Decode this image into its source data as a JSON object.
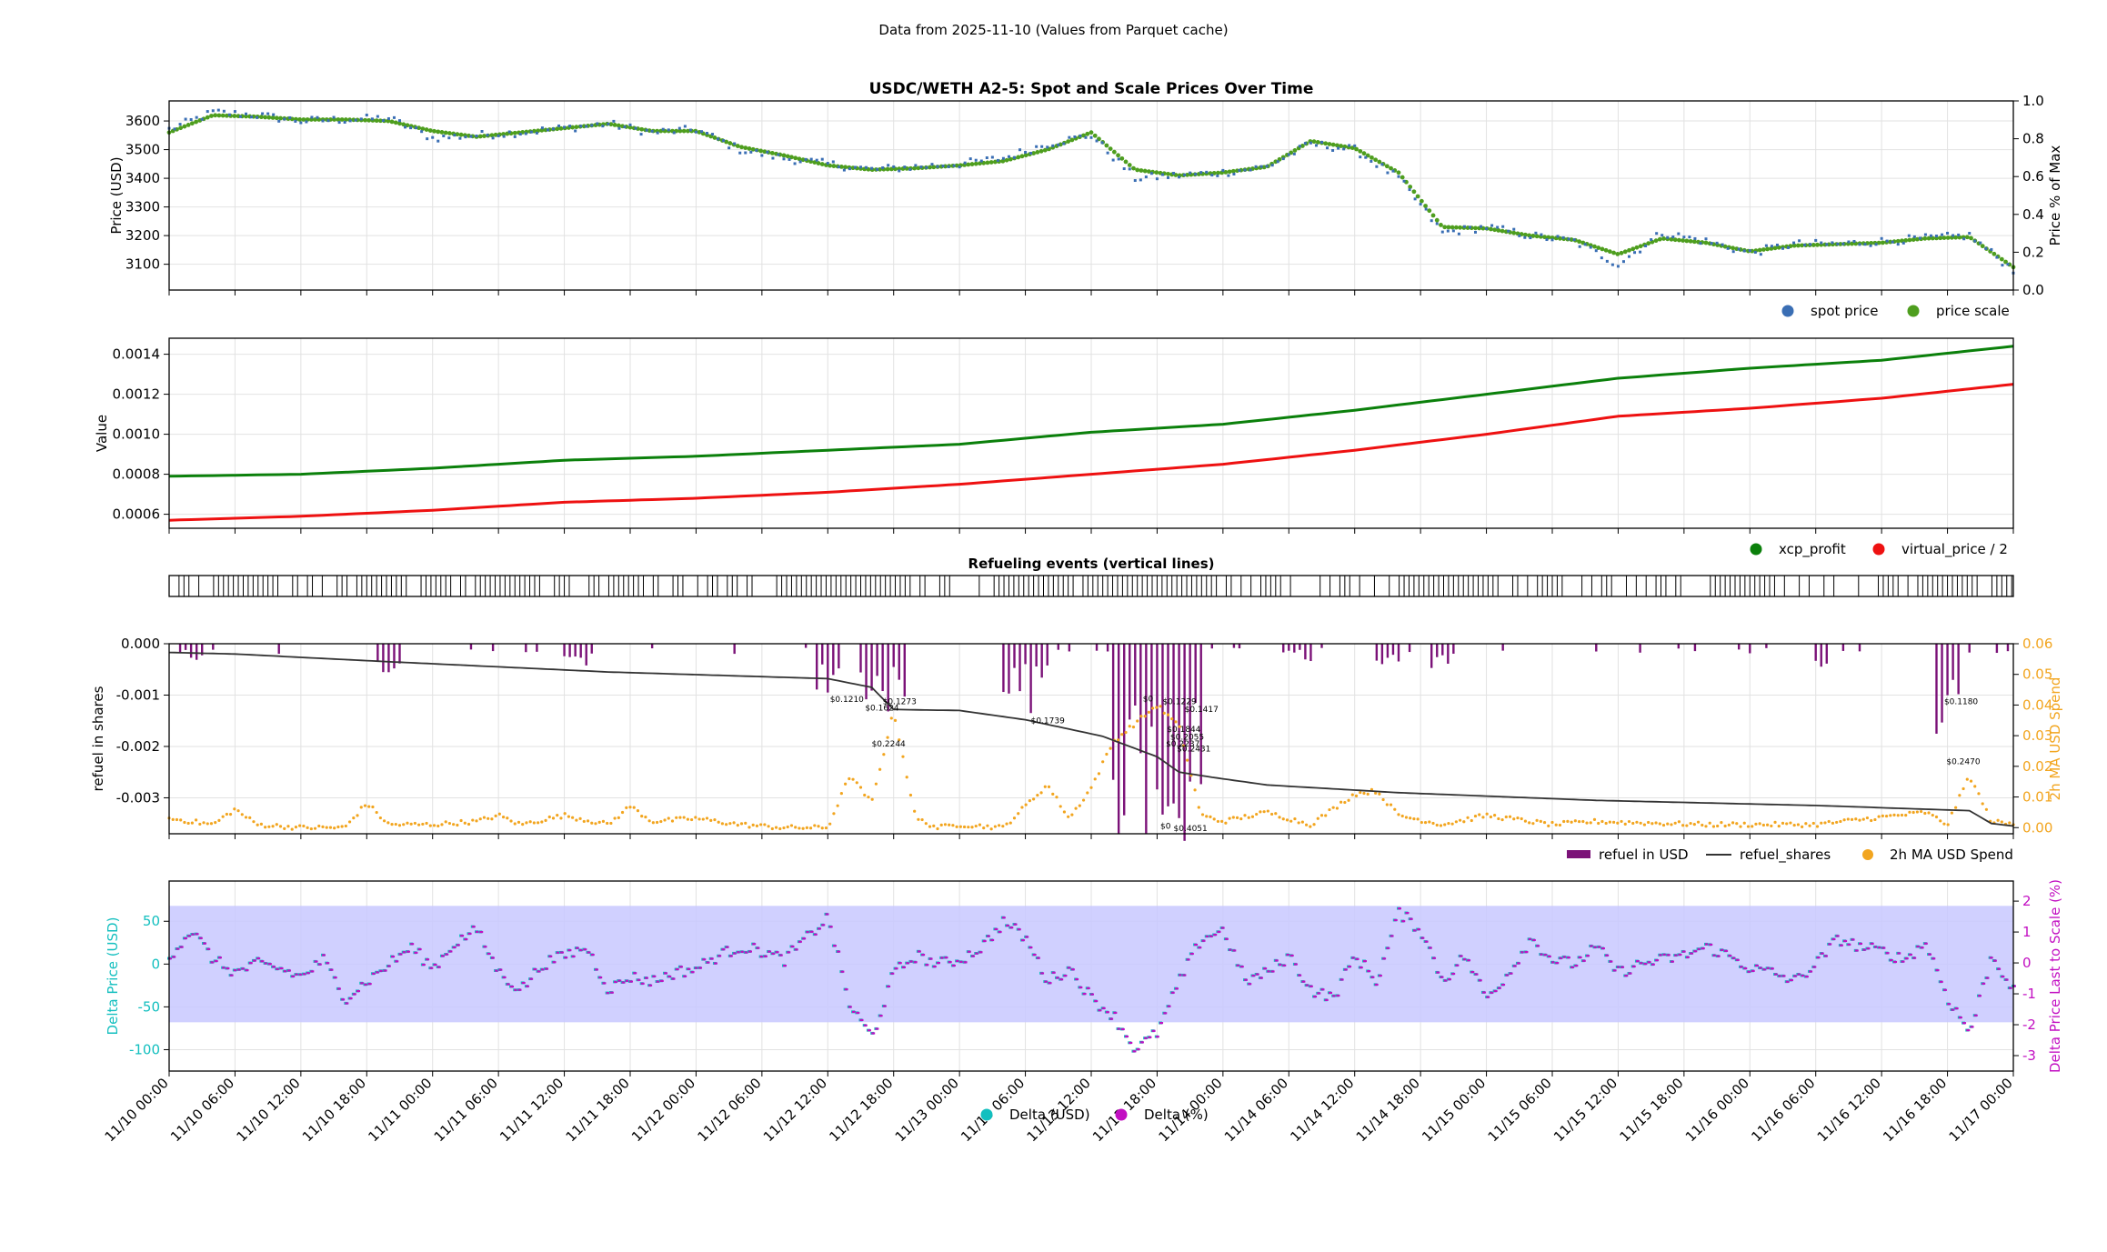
{
  "header": {
    "text": "Data from 2025-11-10 (Values from Parquet cache)"
  },
  "colors": {
    "spot": "#3a6eb4",
    "scale": "#4e9e1e",
    "xcp": "#0b800b",
    "vprice": "#ee1111",
    "refuel_bar": "#7b1278",
    "refuel_shares": "#333333",
    "ma_spend": "#f2a51f",
    "delta_usd": "#13bfbf",
    "delta_pct": "#c20fc2",
    "band": "#c8c8ff",
    "grid": "#e2e2e2"
  },
  "xaxis": {
    "ticks": [
      "11/10 00:00",
      "11/10 06:00",
      "11/10 12:00",
      "11/10 18:00",
      "11/11 00:00",
      "11/11 06:00",
      "11/11 12:00",
      "11/11 18:00",
      "11/12 00:00",
      "11/12 06:00",
      "11/12 12:00",
      "11/12 18:00",
      "11/13 00:00",
      "11/13 06:00",
      "11/13 12:00",
      "11/13 18:00",
      "11/14 00:00",
      "11/14 06:00",
      "11/14 12:00",
      "11/14 18:00",
      "11/15 00:00",
      "11/15 06:00",
      "11/15 12:00",
      "11/15 18:00",
      "11/16 00:00",
      "11/16 06:00",
      "11/16 12:00",
      "11/16 18:00",
      "11/17 00:00"
    ]
  },
  "chart_data": [
    {
      "type": "scatter",
      "title": "USDC/WETH A2-5: Spot and Scale Prices Over Time",
      "ylabel": "Price (USD)",
      "ylim": [
        3010,
        3670
      ],
      "yticks": [
        3100,
        3200,
        3300,
        3400,
        3500,
        3600
      ],
      "y2label": "Price % of Max",
      "y2lim": [
        0.0,
        1.0
      ],
      "y2ticks": [
        "0.0",
        "0.2",
        "0.4",
        "0.6",
        "0.8",
        "1.0"
      ],
      "legend": [
        "spot price",
        "price scale"
      ],
      "legend_position": "below-right",
      "x_hours": [
        0,
        4,
        8,
        12,
        16,
        20,
        24,
        28,
        32,
        36,
        40,
        44,
        48,
        52,
        56,
        60,
        64,
        68,
        72,
        76,
        80,
        84,
        88,
        92,
        96,
        100,
        104,
        108,
        112,
        116,
        120,
        124,
        128,
        132,
        136,
        140,
        144,
        148,
        152,
        156,
        160,
        164,
        168
      ],
      "series": [
        {
          "name": "spot price",
          "values": [
            3570,
            3630,
            3620,
            3600,
            3605,
            3610,
            3540,
            3550,
            3560,
            3575,
            3590,
            3560,
            3570,
            3500,
            3470,
            3450,
            3430,
            3440,
            3450,
            3470,
            3520,
            3550,
            3400,
            3410,
            3420,
            3440,
            3520,
            3500,
            3400,
            3210,
            3230,
            3200,
            3180,
            3100,
            3210,
            3180,
            3140,
            3170,
            3170,
            3180,
            3190,
            3200,
            3080
          ]
        },
        {
          "name": "price scale",
          "values": [
            3560,
            3620,
            3615,
            3605,
            3605,
            3600,
            3565,
            3545,
            3560,
            3575,
            3590,
            3565,
            3565,
            3510,
            3480,
            3445,
            3430,
            3435,
            3445,
            3460,
            3500,
            3560,
            3430,
            3410,
            3420,
            3440,
            3530,
            3505,
            3420,
            3230,
            3225,
            3200,
            3185,
            3135,
            3190,
            3175,
            3145,
            3165,
            3170,
            3175,
            3190,
            3195,
            3090
          ]
        }
      ]
    },
    {
      "type": "line",
      "title": "",
      "ylabel": "Value",
      "ylim": [
        0.00053,
        0.00148
      ],
      "yticks": [
        "0.0006",
        "0.0008",
        "0.0010",
        "0.0012",
        "0.0014"
      ],
      "yticks_values": [
        0.0006,
        0.0008,
        0.001,
        0.0012,
        0.0014
      ],
      "legend": [
        "xcp_profit",
        "virtual_price / 2"
      ],
      "legend_position": "below-right",
      "x_hours": [
        0,
        12,
        24,
        36,
        48,
        60,
        72,
        84,
        96,
        108,
        120,
        132,
        144,
        156,
        168
      ],
      "series": [
        {
          "name": "xcp_profit",
          "values": [
            0.00079,
            0.0008,
            0.00083,
            0.00087,
            0.00089,
            0.00092,
            0.00095,
            0.00101,
            0.00105,
            0.00112,
            0.0012,
            0.00128,
            0.00133,
            0.00137,
            0.00144
          ]
        },
        {
          "name": "virtual_price / 2",
          "values": [
            0.00057,
            0.00059,
            0.00062,
            0.00066,
            0.00068,
            0.00071,
            0.00075,
            0.0008,
            0.00085,
            0.00092,
            0.001,
            0.00109,
            0.00113,
            0.00118,
            0.00125
          ]
        }
      ]
    },
    {
      "type": "table",
      "title": "Refueling events (vertical lines)",
      "description_density": "event markers"
    },
    {
      "type": "bar",
      "title": "",
      "ylabel": "refuel in shares",
      "ylim": [
        -0.0037,
        0.0
      ],
      "yticks": [
        "-0.003",
        "-0.002",
        "-0.001",
        "0.000"
      ],
      "yticks_values": [
        -0.003,
        -0.002,
        -0.001,
        0.0
      ],
      "y2label": "2h MA USD Spend",
      "y2lim": [
        -0.002,
        0.06
      ],
      "y2ticks": [
        "0.00",
        "0.01",
        "0.02",
        "0.03",
        "0.04",
        "0.05",
        "0.06"
      ],
      "legend": [
        "refuel in USD",
        "refuel_shares",
        "2h MA USD Spend"
      ],
      "legend_position": "below-right",
      "refuel_shares": {
        "x_hours": [
          0,
          6,
          18,
          30,
          40,
          60,
          64,
          66,
          72,
          78,
          85,
          90,
          92,
          95,
          100,
          112,
          130,
          150,
          164,
          166,
          168
        ],
        "values": [
          -0.00017,
          -0.0002,
          -0.00033,
          -0.00045,
          -0.00055,
          -0.00068,
          -0.00085,
          -0.00128,
          -0.0013,
          -0.00148,
          -0.0018,
          -0.0022,
          -0.0025,
          -0.0026,
          -0.00275,
          -0.0029,
          -0.00305,
          -0.00315,
          -0.00325,
          -0.0035,
          -0.00355
        ]
      },
      "ma_spend": {
        "x_hours": [
          0,
          4,
          6,
          8,
          12,
          16,
          18,
          20,
          24,
          28,
          30,
          32,
          36,
          40,
          42,
          44,
          48,
          52,
          56,
          60,
          62,
          64,
          66,
          68,
          70,
          72,
          76,
          80,
          82,
          84,
          86,
          90,
          92,
          94,
          96,
          100,
          104,
          108,
          110,
          112,
          116,
          120,
          126,
          130,
          140,
          150,
          160,
          162,
          164,
          166,
          168
        ],
        "values": [
          0.003,
          0.001,
          0.006,
          0.001,
          0.0,
          0.0,
          0.008,
          0.001,
          0.001,
          0.002,
          0.004,
          0.001,
          0.004,
          0.001,
          0.007,
          0.002,
          0.003,
          0.001,
          0.0,
          0.0,
          0.017,
          0.008,
          0.038,
          0.003,
          0.0,
          0.001,
          0.0,
          0.014,
          0.003,
          0.013,
          0.028,
          0.04,
          0.033,
          0.004,
          0.002,
          0.005,
          0.001,
          0.011,
          0.012,
          0.004,
          0.001,
          0.004,
          0.001,
          0.002,
          0.001,
          0.001,
          0.005,
          0.001,
          0.017,
          0.002,
          0.001
        ]
      },
      "annotations": [
        {
          "label": "$0.1210",
          "x_hours": 60.2,
          "y": -0.00113
        },
        {
          "label": "$0.1624",
          "x_hours": 63.4,
          "y": -0.0013
        },
        {
          "label": "$0.1273",
          "x_hours": 65.0,
          "y": -0.00118
        },
        {
          "label": "$0.2244",
          "x_hours": 64.0,
          "y": -0.002
        },
        {
          "label": "$0.1739",
          "x_hours": 78.5,
          "y": -0.00155
        },
        {
          "label": "$0",
          "x_hours": 88.7,
          "y": -0.00112
        },
        {
          "label": "$0.1229",
          "x_hours": 90.5,
          "y": -0.00118
        },
        {
          "label": "$0.1417",
          "x_hours": 92.5,
          "y": -0.00133
        },
        {
          "label": "$0.1844",
          "x_hours": 90.9,
          "y": -0.00172
        },
        {
          "label": "$0.2055",
          "x_hours": 91.2,
          "y": -0.00187
        },
        {
          "label": "$0.2237",
          "x_hours": 90.8,
          "y": -0.002
        },
        {
          "label": "$0.2431",
          "x_hours": 91.8,
          "y": -0.0021
        },
        {
          "label": "$0",
          "x_hours": 90.3,
          "y": -0.0036
        },
        {
          "label": "$0.4051",
          "x_hours": 91.5,
          "y": -0.00365
        },
        {
          "label": "$0.1180",
          "x_hours": 161.7,
          "y": -0.00118
        },
        {
          "label": "$0.2470",
          "x_hours": 161.9,
          "y": -0.00235
        }
      ]
    },
    {
      "type": "scatter",
      "title": "",
      "ylabel": "Delta Price (USD)",
      "ylim": [
        -125,
        97
      ],
      "yticks": [
        "50",
        "0",
        "-50",
        "-100"
      ],
      "yticks_values": [
        50,
        0,
        -50,
        -100
      ],
      "y2label": "Delta Price Last to Scale (%)",
      "y2lim": [
        -3.5,
        2.65
      ],
      "y2ticks": [
        "2",
        "1",
        "0",
        "-1",
        "-2",
        "-3"
      ],
      "y2ticks_values": [
        2,
        1,
        0,
        -1,
        -2,
        -3
      ],
      "band": [
        -68,
        68
      ],
      "legend": [
        "Delta (USD)",
        "Delta (%)"
      ],
      "legend_position": "lower-center",
      "x_hours": [
        0,
        2,
        4,
        6,
        8,
        10,
        12,
        14,
        16,
        18,
        20,
        22,
        24,
        26,
        28,
        30,
        32,
        34,
        36,
        38,
        40,
        42,
        44,
        46,
        48,
        50,
        52,
        54,
        56,
        58,
        60,
        62,
        64,
        66,
        68,
        70,
        72,
        74,
        76,
        78,
        80,
        82,
        84,
        86,
        88,
        90,
        92,
        94,
        96,
        98,
        100,
        102,
        104,
        106,
        108,
        110,
        112,
        114,
        116,
        118,
        120,
        122,
        124,
        126,
        128,
        130,
        132,
        134,
        136,
        138,
        140,
        142,
        144,
        146,
        148,
        150,
        152,
        154,
        156,
        158,
        160,
        162,
        164,
        166,
        168
      ],
      "series": [
        {
          "name": "Delta (USD)",
          "values": [
            10,
            40,
            5,
            -10,
            0,
            -5,
            -15,
            5,
            -40,
            -20,
            0,
            20,
            -5,
            25,
            40,
            -10,
            -30,
            0,
            10,
            20,
            -30,
            -15,
            -20,
            -10,
            -5,
            10,
            20,
            15,
            5,
            30,
            55,
            -50,
            -85,
            -10,
            10,
            0,
            5,
            20,
            50,
            30,
            -20,
            -5,
            -40,
            -60,
            -100,
            -80,
            -20,
            30,
            40,
            -20,
            -10,
            10,
            -30,
            -40,
            10,
            -20,
            60,
            40,
            -20,
            10,
            -40,
            -10,
            30,
            5,
            0,
            20,
            -10,
            0,
            5,
            10,
            20,
            10,
            -5,
            -10,
            -20,
            0,
            30,
            20,
            15,
            5,
            25,
            -40,
            -80,
            10,
            -30
          ]
        },
        {
          "name": "Delta (%)",
          "values": [
            0.3,
            1.2,
            0.1,
            -0.3,
            0.0,
            -0.2,
            -0.5,
            0.2,
            -1.2,
            -0.6,
            0.0,
            0.6,
            -0.2,
            0.8,
            1.2,
            -0.3,
            -0.9,
            0.0,
            0.3,
            0.6,
            -0.9,
            -0.5,
            -0.6,
            -0.3,
            -0.2,
            0.3,
            0.6,
            0.5,
            0.2,
            0.9,
            1.6,
            -1.5,
            -2.5,
            -0.3,
            0.3,
            0.0,
            0.2,
            0.6,
            1.5,
            0.9,
            -0.6,
            -0.2,
            -1.2,
            -1.8,
            -3.0,
            -2.4,
            -0.6,
            0.9,
            1.2,
            -0.6,
            -0.3,
            0.3,
            -0.9,
            -1.2,
            0.3,
            -0.6,
            1.8,
            1.2,
            -0.6,
            0.3,
            -1.2,
            -0.3,
            0.9,
            0.2,
            0.0,
            0.6,
            -0.3,
            0.0,
            0.2,
            0.3,
            0.6,
            0.3,
            -0.2,
            -0.3,
            -0.6,
            0.0,
            0.9,
            0.6,
            0.5,
            0.2,
            0.8,
            -1.2,
            -2.4,
            0.3,
            -0.9
          ]
        }
      ]
    }
  ]
}
